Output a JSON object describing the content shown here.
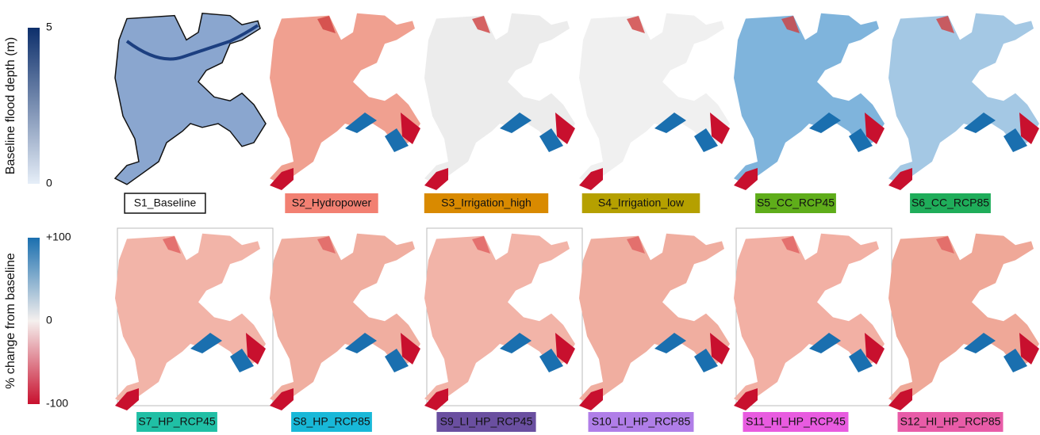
{
  "colorbars": [
    {
      "title": "Baseline flood depth (m)",
      "ticks": [
        "5",
        "0"
      ],
      "colors": [
        "#0d2f6b",
        "#e6eef8"
      ]
    },
    {
      "title": "% change from baseline",
      "ticks": [
        "+100",
        "0",
        "-100"
      ],
      "colors": [
        "#1a6faf",
        "#f5f0ee",
        "#c8102e"
      ]
    }
  ],
  "panels": [
    {
      "label": "S1_Baseline",
      "color": "#ffffff",
      "tint": "#8aa6cf",
      "frame": false
    },
    {
      "label": "S2_Hydropower",
      "color": "#f28072",
      "tint": "#f0a090",
      "frame": false
    },
    {
      "label": "S3_Irrigation_high",
      "color": "#d98a00",
      "tint": "#ececec",
      "frame": false
    },
    {
      "label": "S4_Irrigation_low",
      "color": "#b5a000",
      "tint": "#f0f0f0",
      "frame": false
    },
    {
      "label": "S5_CC_RCP45",
      "color": "#5fad1a",
      "tint": "#7fb4dc",
      "frame": false
    },
    {
      "label": "S6_CC_RCP85",
      "color": "#1fad5a",
      "tint": "#a4c8e4",
      "frame": false
    },
    {
      "label": "S7_HP_RCP45",
      "color": "#20bfa5",
      "tint": "#f2b4a8",
      "frame": true
    },
    {
      "label": "S8_HP_RCP85",
      "color": "#18b8d8",
      "tint": "#f0aea0",
      "frame": false
    },
    {
      "label": "S9_LI_HP_RCP45",
      "color": "#6a4fa0",
      "tint": "#f2b4a8",
      "frame": true
    },
    {
      "label": "S10_LI_HP_RCP85",
      "color": "#b07ee8",
      "tint": "#f0aea0",
      "frame": false
    },
    {
      "label": "S11_HI_HP_RCP45",
      "color": "#e85be0",
      "tint": "#f2b0a4",
      "frame": true
    },
    {
      "label": "S12_HI_HP_RCP85",
      "color": "#e85ca8",
      "tint": "#efa898",
      "frame": false
    }
  ]
}
